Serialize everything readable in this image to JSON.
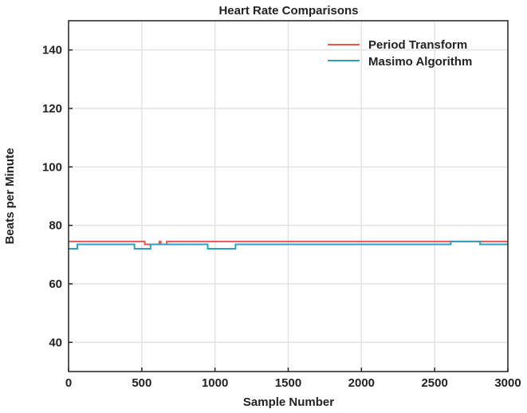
{
  "chart_data": {
    "type": "line",
    "title": "Heart Rate Comparisons",
    "xlabel": "Sample Number",
    "ylabel": "Beats per Minute",
    "xlim": [
      0,
      3000
    ],
    "ylim": [
      30,
      150
    ],
    "xticks": [
      0,
      500,
      1000,
      1500,
      2000,
      2500,
      3000
    ],
    "yticks": [
      40,
      60,
      80,
      100,
      120,
      140
    ],
    "grid": true,
    "legend_position": "top-right",
    "series": [
      {
        "name": "Period Transform",
        "color": "#e8574a",
        "step": true,
        "x": [
          0,
          510,
          520,
          610,
          620,
          630,
          660,
          670,
          690,
          3000
        ],
        "y": [
          74.5,
          74.5,
          73.5,
          73.5,
          74.5,
          73.5,
          73.5,
          74.5,
          74.5,
          74.5
        ]
      },
      {
        "name": "Masimo Algorithm",
        "color": "#2e9ec4",
        "step": true,
        "x": [
          0,
          60,
          450,
          560,
          950,
          1140,
          2610,
          2810,
          3000
        ],
        "y": [
          72,
          73.5,
          72,
          73.5,
          72,
          73.5,
          74.5,
          73.5,
          73.5
        ]
      }
    ]
  }
}
